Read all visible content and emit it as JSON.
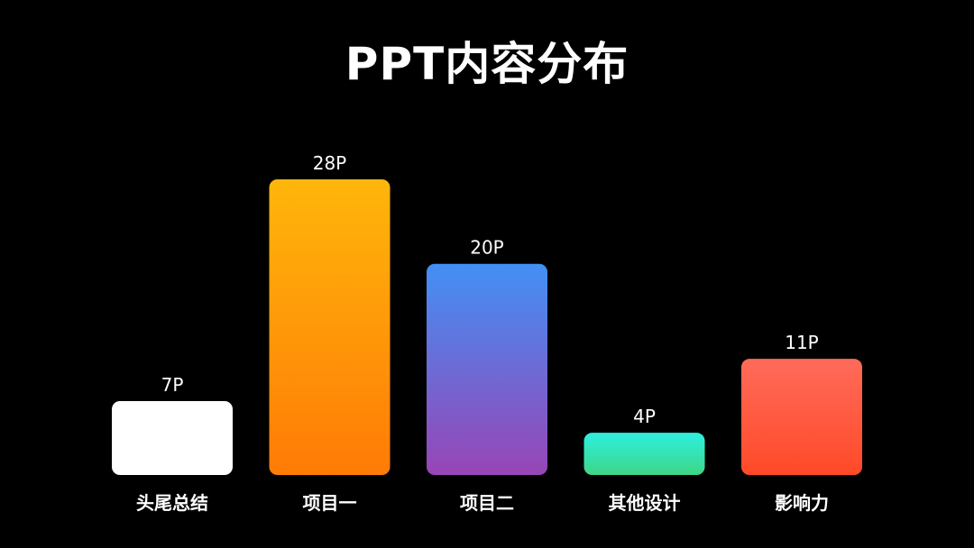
{
  "title": "PPT内容分布",
  "chart_data": {
    "type": "bar",
    "title": "PPT内容分布",
    "categories": [
      "头尾总结",
      "项目一",
      "项目二",
      "其他设计",
      "影响力"
    ],
    "values": [
      7,
      28,
      20,
      4,
      11
    ],
    "data_labels": [
      "7P",
      "28P",
      "20P",
      "4P",
      "11P"
    ],
    "unit": "P",
    "xlabel": "",
    "ylabel": "",
    "ylim": [
      0,
      28
    ],
    "grid": false,
    "legend": "none",
    "gradients": [
      [
        "#ffffff",
        "#ffffff"
      ],
      [
        "#ffb60b",
        "#ff7b06"
      ],
      [
        "#4290f5",
        "#9845b5"
      ],
      [
        "#2ef0e0",
        "#3ed686"
      ],
      [
        "#ff6b5a",
        "#ff4a28"
      ]
    ]
  }
}
